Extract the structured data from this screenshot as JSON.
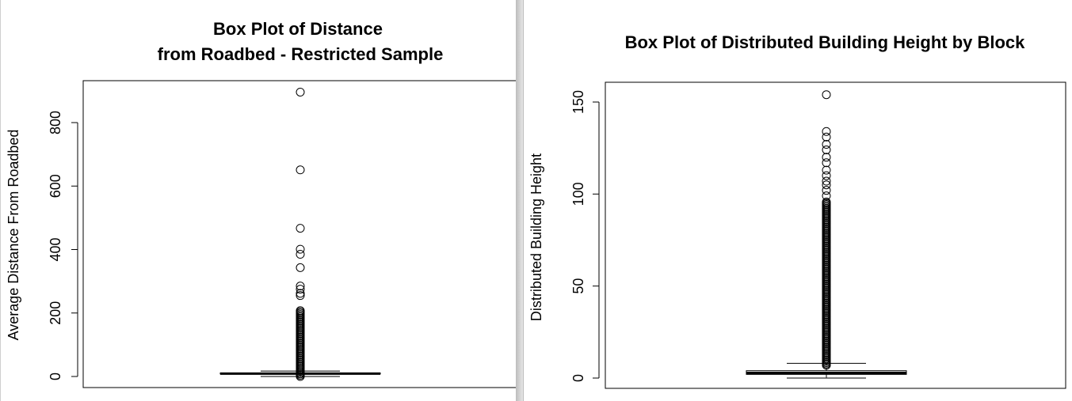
{
  "chart_data": [
    {
      "type": "box",
      "title_line1": "Box Plot of Distance",
      "title_line2": "from Roadbed - Restricted Sample",
      "xlabel": "",
      "ylabel": "Average Distance From Roadbed",
      "ylim": [
        0,
        900
      ],
      "yticks": [
        0,
        200,
        400,
        600,
        800
      ],
      "box": {
        "min": 0,
        "q1": 8,
        "median": 9,
        "q3": 11,
        "whisker_high": 17
      },
      "outliers_sparse": [
        896,
        651,
        467,
        401,
        385,
        343,
        285,
        275,
        262,
        255
      ],
      "outlier_dense_range": [
        0,
        210
      ],
      "grid": false
    },
    {
      "type": "box",
      "title": "Box Plot of Distributed Building Height by Block",
      "xlabel": "",
      "ylabel": "Distributed Building Height",
      "ylim": [
        0,
        155
      ],
      "yticks": [
        0,
        50,
        100,
        150
      ],
      "box": {
        "min": 0,
        "q1": 2,
        "median": 2.8,
        "q3": 4,
        "whisker_high": 8
      },
      "outliers_sparse": [
        154,
        134,
        131,
        127,
        124,
        120,
        117,
        113,
        110,
        107,
        105,
        102,
        99
      ],
      "outlier_dense_range": [
        7,
        96
      ],
      "grid": false
    }
  ]
}
